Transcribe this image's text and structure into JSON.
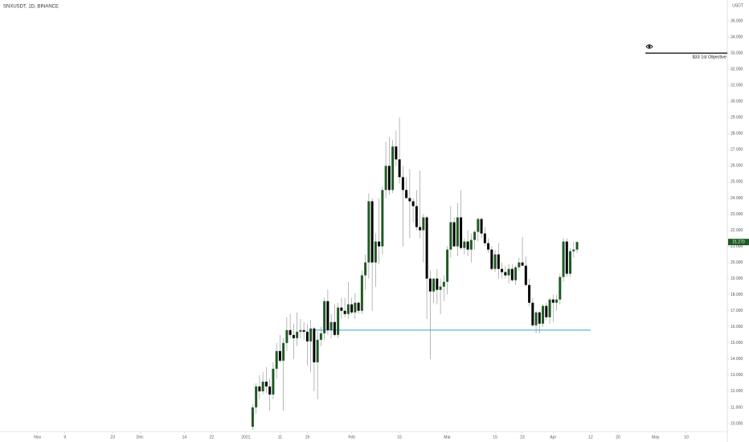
{
  "chart_data": {
    "type": "candlestick",
    "title": "SNXUSDT, 1D, BINANCE",
    "y_axis_label": "USDT",
    "xlim": [
      -72,
      141
    ],
    "ylim": [
      9.35,
      36.3
    ],
    "xticks": [
      {
        "value": -61,
        "label": "Nov"
      },
      {
        "value": -53,
        "label": "9"
      },
      {
        "value": -39,
        "label": "23"
      },
      {
        "value": -31,
        "label": "Dec"
      },
      {
        "value": -18,
        "label": "14"
      },
      {
        "value": -10,
        "label": "22"
      },
      {
        "value": 0,
        "label": "2021"
      },
      {
        "value": 10,
        "label": "11"
      },
      {
        "value": 18,
        "label": "19"
      },
      {
        "value": 31,
        "label": "Feb"
      },
      {
        "value": 45,
        "label": "15"
      },
      {
        "value": 59,
        "label": "Mar"
      },
      {
        "value": 73,
        "label": "15"
      },
      {
        "value": 81,
        "label": "23"
      },
      {
        "value": 90,
        "label": "Apr"
      },
      {
        "value": 101,
        "label": "12"
      },
      {
        "value": 109,
        "label": "20"
      },
      {
        "value": 120,
        "label": "May"
      },
      {
        "value": 129,
        "label": "10"
      }
    ],
    "yticks": [
      {
        "value": 10,
        "label": "10.000"
      },
      {
        "value": 11,
        "label": "11.000"
      },
      {
        "value": 12,
        "label": "12.000"
      },
      {
        "value": 13,
        "label": "13.000"
      },
      {
        "value": 14,
        "label": "14.000"
      },
      {
        "value": 15,
        "label": "15.000"
      },
      {
        "value": 16,
        "label": "16.000"
      },
      {
        "value": 17,
        "label": "17.000"
      },
      {
        "value": 18,
        "label": "18.000"
      },
      {
        "value": 19,
        "label": "19.000"
      },
      {
        "value": 20,
        "label": "20.000"
      },
      {
        "value": 21,
        "label": "21.000"
      },
      {
        "value": 22,
        "label": "22.000"
      },
      {
        "value": 23,
        "label": "23.000"
      },
      {
        "value": 24,
        "label": "24.000"
      },
      {
        "value": 25,
        "label": "25.000"
      },
      {
        "value": 26,
        "label": "26.000"
      },
      {
        "value": 27,
        "label": "27.000"
      },
      {
        "value": 28,
        "label": "28.000"
      },
      {
        "value": 29,
        "label": "29.000"
      },
      {
        "value": 30,
        "label": "30.000"
      },
      {
        "value": 31,
        "label": "31.000"
      },
      {
        "value": 32,
        "label": "32.000"
      },
      {
        "value": 33,
        "label": "33.000"
      },
      {
        "value": 34,
        "label": "34.000"
      },
      {
        "value": 35,
        "label": "35.000"
      }
    ],
    "up_color": "#1e5a23",
    "down_color": "#000000",
    "wick_color": "#9a9a9a",
    "x": [
      2,
      3,
      4,
      5,
      6,
      7,
      8,
      9,
      10,
      11,
      12,
      13,
      14,
      15,
      16,
      17,
      18,
      19,
      20,
      21,
      22,
      23,
      24,
      25,
      26,
      27,
      28,
      29,
      30,
      31,
      32,
      33,
      34,
      35,
      36,
      37,
      38,
      39,
      40,
      41,
      42,
      43,
      44,
      45,
      46,
      47,
      48,
      49,
      50,
      51,
      52,
      53,
      54,
      55,
      56,
      57,
      58,
      59,
      60,
      61,
      62,
      63,
      64,
      65,
      66,
      67,
      68,
      69,
      70,
      71,
      72,
      73,
      74,
      75,
      76,
      77,
      78,
      79,
      80,
      81,
      82,
      83,
      84,
      85,
      86,
      87,
      88,
      89,
      90,
      91,
      92,
      93,
      94,
      95,
      96,
      97
    ],
    "open": [
      9.8,
      11.0,
      12.3,
      12.0,
      12.6,
      12.3,
      11.8,
      13.4,
      14.5,
      13.9,
      15.0,
      15.8,
      15.5,
      15.3,
      15.7,
      15.8,
      15.7,
      15.1,
      15.9,
      13.8,
      15.2,
      15.6,
      17.6,
      15.8,
      16.3,
      15.5,
      17.2,
      17.0,
      16.8,
      17.4,
      16.9,
      17.5,
      17.0,
      19.2,
      20.0,
      23.8,
      20.0,
      21.3,
      21.0,
      24.5,
      26.0,
      24.5,
      27.2,
      26.4,
      25.3,
      24.5,
      24.0,
      23.8,
      23.5,
      22.2,
      22.0,
      22.8,
      19.0,
      18.2,
      19.0,
      18.3,
      18.5,
      18.8,
      20.8,
      22.5,
      21.0,
      22.8,
      20.9,
      21.3,
      20.8,
      21.4,
      21.9,
      22.7,
      21.8,
      21.2,
      20.8,
      19.6,
      20.5,
      19.6,
      19.4,
      19.2,
      19.6,
      18.9,
      19.7,
      20.0,
      19.8,
      18.6,
      17.5,
      16.1,
      16.9,
      16.2,
      17.3,
      16.6,
      17.7,
      17.5,
      17.7,
      19.1,
      21.3,
      19.3,
      20.7,
      20.8
    ],
    "high": [
      11.2,
      12.5,
      13.0,
      13.2,
      13.5,
      12.8,
      13.8,
      15.0,
      15.5,
      15.3,
      16.6,
      16.8,
      16.2,
      16.9,
      16.5,
      16.3,
      16.2,
      16.4,
      16.0,
      15.7,
      16.0,
      17.8,
      18.3,
      16.8,
      17.4,
      17.5,
      17.8,
      17.8,
      18.8,
      17.8,
      18.1,
      17.6,
      19.5,
      20.5,
      24.3,
      24.0,
      21.8,
      24.0,
      24.7,
      27.5,
      27.8,
      27.6,
      28.2,
      29.0,
      26.0,
      25.3,
      25.8,
      24.0,
      24.5,
      25.7,
      23.0,
      22.9,
      19.5,
      19.0,
      19.6,
      19.0,
      19.2,
      21.0,
      23.5,
      22.8,
      23.7,
      24.5,
      21.5,
      22.0,
      21.8,
      22.0,
      22.8,
      22.8,
      22.2,
      21.5,
      21.0,
      20.8,
      21.2,
      20.0,
      19.8,
      19.9,
      19.9,
      19.8,
      20.3,
      21.6,
      20.4,
      19.0,
      17.8,
      17.0,
      17.0,
      17.4,
      17.5,
      17.8,
      18.0,
      18.0,
      19.3,
      21.5,
      21.5,
      20.9,
      21.3,
      21.3
    ],
    "low": [
      9.6,
      10.6,
      11.5,
      11.8,
      11.9,
      10.8,
      11.5,
      12.8,
      13.8,
      10.8,
      14.5,
      15.3,
      14.0,
      14.8,
      15.3,
      15.2,
      13.6,
      13.2,
      12.0,
      11.5,
      14.8,
      15.2,
      15.5,
      15.3,
      15.4,
      15.3,
      16.5,
      16.6,
      16.5,
      16.8,
      16.5,
      16.8,
      16.8,
      18.3,
      19.0,
      17.0,
      18.5,
      19.9,
      20.5,
      24.0,
      24.2,
      24.3,
      26.0,
      24.9,
      21.0,
      24.0,
      21.5,
      22.5,
      22.0,
      21.5,
      20.0,
      16.5,
      14.0,
      17.5,
      17.4,
      16.8,
      17.6,
      18.0,
      20.3,
      21.0,
      20.4,
      20.8,
      20.5,
      20.4,
      20.0,
      20.8,
      21.3,
      21.5,
      21.0,
      20.6,
      19.5,
      19.4,
      19.0,
      19.0,
      19.0,
      18.7,
      18.8,
      18.6,
      19.5,
      19.8,
      18.5,
      17.3,
      16.0,
      15.6,
      15.6,
      16.0,
      16.4,
      16.2,
      16.3,
      17.0,
      17.4,
      18.8,
      19.1,
      19.1,
      20.3,
      20.6
    ],
    "close": [
      11.0,
      12.3,
      12.0,
      12.6,
      12.3,
      11.8,
      13.4,
      14.5,
      13.9,
      15.0,
      15.8,
      15.5,
      15.3,
      15.7,
      15.8,
      15.7,
      15.1,
      15.9,
      13.8,
      15.2,
      15.6,
      17.6,
      15.8,
      16.3,
      15.5,
      17.2,
      17.0,
      16.8,
      17.4,
      16.9,
      17.5,
      17.0,
      19.2,
      20.0,
      23.8,
      20.0,
      21.3,
      21.0,
      24.5,
      26.0,
      24.5,
      27.2,
      26.4,
      25.3,
      24.5,
      24.0,
      23.8,
      23.5,
      22.2,
      22.0,
      22.8,
      19.0,
      18.2,
      19.0,
      18.3,
      18.5,
      18.8,
      20.8,
      22.5,
      21.0,
      22.8,
      20.9,
      21.3,
      20.8,
      21.4,
      21.9,
      22.7,
      21.8,
      21.2,
      20.8,
      19.6,
      20.5,
      19.6,
      19.4,
      19.2,
      19.6,
      18.9,
      19.7,
      20.0,
      19.8,
      18.6,
      17.5,
      16.1,
      16.9,
      16.2,
      17.3,
      16.6,
      17.7,
      17.5,
      17.7,
      19.1,
      21.3,
      19.3,
      20.7,
      20.8,
      21.27
    ],
    "last_price": {
      "value": 21.27,
      "label": "21.270"
    },
    "levels": [
      {
        "y": 15.8,
        "x": [
          20,
          101
        ],
        "color": "#5ab4e5"
      },
      {
        "y": 33,
        "x": [
          117,
          141
        ],
        "color": "#000000",
        "label": "$33 1st Objective"
      }
    ]
  }
}
